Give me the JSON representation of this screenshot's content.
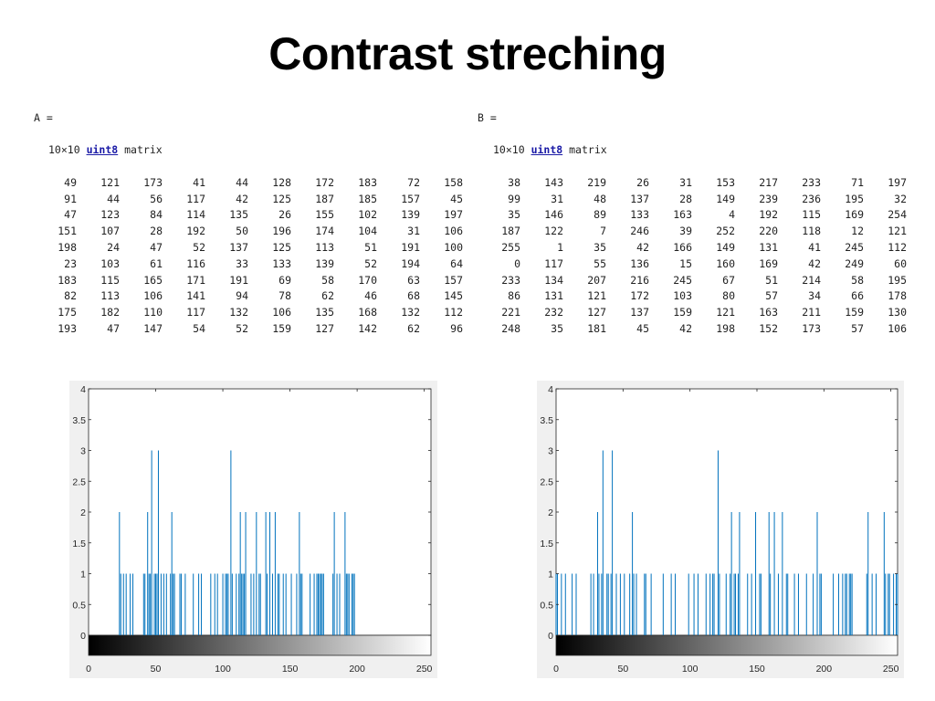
{
  "title": "Contrast streching",
  "matrixA": {
    "label": "A =",
    "size": "10×10",
    "type_link": "uint8",
    "type_suffix": "matrix",
    "rows": [
      [
        49,
        121,
        173,
        41,
        44,
        128,
        172,
        183,
        72,
        158
      ],
      [
        91,
        44,
        56,
        117,
        42,
        125,
        187,
        185,
        157,
        45
      ],
      [
        47,
        123,
        84,
        114,
        135,
        26,
        155,
        102,
        139,
        197
      ],
      [
        151,
        107,
        28,
        192,
        50,
        196,
        174,
        104,
        31,
        106
      ],
      [
        198,
        24,
        47,
        52,
        137,
        125,
        113,
        51,
        191,
        100
      ],
      [
        23,
        103,
        61,
        116,
        33,
        133,
        139,
        52,
        194,
        64
      ],
      [
        183,
        115,
        165,
        171,
        191,
        69,
        58,
        170,
        63,
        157
      ],
      [
        82,
        113,
        106,
        141,
        94,
        78,
        62,
        46,
        68,
        145
      ],
      [
        175,
        182,
        110,
        117,
        132,
        106,
        135,
        168,
        132,
        112
      ],
      [
        193,
        47,
        147,
        54,
        52,
        159,
        127,
        142,
        62,
        96
      ]
    ]
  },
  "matrixB": {
    "label": "B =",
    "size": "10×10",
    "type_link": "uint8",
    "type_suffix": "matrix",
    "rows": [
      [
        38,
        143,
        219,
        26,
        31,
        153,
        217,
        233,
        71,
        197
      ],
      [
        99,
        31,
        48,
        137,
        28,
        149,
        239,
        236,
        195,
        32
      ],
      [
        35,
        146,
        89,
        133,
        163,
        4,
        192,
        115,
        169,
        254
      ],
      [
        187,
        122,
        7,
        246,
        39,
        252,
        220,
        118,
        12,
        121
      ],
      [
        255,
        1,
        35,
        42,
        166,
        149,
        131,
        41,
        245,
        112
      ],
      [
        0,
        117,
        55,
        136,
        15,
        160,
        169,
        42,
        249,
        60
      ],
      [
        233,
        134,
        207,
        216,
        245,
        67,
        51,
        214,
        58,
        195
      ],
      [
        86,
        131,
        121,
        172,
        103,
        80,
        57,
        34,
        66,
        178
      ],
      [
        221,
        232,
        127,
        137,
        159,
        121,
        163,
        211,
        159,
        130
      ],
      [
        248,
        35,
        181,
        45,
        42,
        198,
        152,
        173,
        57,
        106
      ]
    ]
  },
  "chart_data": [
    {
      "type": "bar",
      "xlim": [
        0,
        255
      ],
      "ylim": [
        0,
        4
      ],
      "xticks": [
        "0",
        "50",
        "100",
        "150",
        "200",
        "250"
      ],
      "yticks": [
        "0",
        "0.5",
        "1",
        "1.5",
        "2",
        "2.5",
        "3",
        "3.5",
        "4"
      ],
      "bar_color": "#0072BD",
      "colorbar": "grayscale",
      "x": [
        23,
        24,
        26,
        28,
        31,
        33,
        41,
        42,
        44,
        45,
        46,
        47,
        49,
        50,
        51,
        52,
        54,
        56,
        58,
        61,
        62,
        63,
        64,
        68,
        69,
        72,
        78,
        82,
        84,
        91,
        94,
        96,
        100,
        102,
        103,
        104,
        106,
        107,
        110,
        112,
        113,
        114,
        115,
        116,
        117,
        121,
        123,
        125,
        127,
        128,
        132,
        133,
        135,
        137,
        139,
        141,
        142,
        145,
        147,
        151,
        155,
        157,
        158,
        159,
        165,
        168,
        170,
        171,
        172,
        173,
        174,
        175,
        182,
        183,
        185,
        187,
        191,
        192,
        193,
        194,
        196,
        197,
        198
      ],
      "values": [
        2,
        1,
        1,
        1,
        1,
        1,
        1,
        1,
        2,
        1,
        1,
        3,
        1,
        1,
        1,
        3,
        1,
        1,
        1,
        1,
        2,
        1,
        1,
        1,
        1,
        1,
        1,
        1,
        1,
        1,
        1,
        1,
        1,
        1,
        1,
        1,
        3,
        1,
        1,
        1,
        2,
        1,
        1,
        1,
        2,
        1,
        1,
        2,
        1,
        1,
        2,
        1,
        2,
        1,
        2,
        1,
        1,
        1,
        1,
        1,
        1,
        2,
        1,
        1,
        1,
        1,
        1,
        1,
        1,
        1,
        1,
        1,
        1,
        2,
        1,
        1,
        2,
        1,
        1,
        1,
        1,
        1,
        1
      ]
    },
    {
      "type": "bar",
      "xlim": [
        0,
        255
      ],
      "ylim": [
        0,
        4
      ],
      "xticks": [
        "0",
        "50",
        "100",
        "150",
        "200",
        "250"
      ],
      "yticks": [
        "0",
        "0.5",
        "1",
        "1.5",
        "2",
        "2.5",
        "3",
        "3.5",
        "4"
      ],
      "bar_color": "#0072BD",
      "colorbar": "grayscale",
      "x": [
        0,
        1,
        4,
        7,
        12,
        15,
        26,
        28,
        31,
        32,
        34,
        35,
        38,
        39,
        41,
        42,
        45,
        48,
        51,
        55,
        57,
        58,
        60,
        66,
        67,
        71,
        80,
        86,
        89,
        99,
        103,
        106,
        112,
        115,
        117,
        118,
        121,
        122,
        127,
        130,
        131,
        133,
        134,
        136,
        137,
        143,
        146,
        149,
        152,
        153,
        159,
        160,
        163,
        166,
        169,
        172,
        173,
        178,
        181,
        187,
        192,
        195,
        197,
        198,
        207,
        211,
        214,
        216,
        217,
        219,
        220,
        221,
        232,
        233,
        236,
        239,
        245,
        246,
        248,
        249,
        252,
        254,
        255
      ],
      "values": [
        1,
        1,
        1,
        1,
        1,
        1,
        1,
        1,
        2,
        1,
        1,
        3,
        1,
        1,
        1,
        3,
        1,
        1,
        1,
        1,
        2,
        1,
        1,
        1,
        1,
        1,
        1,
        1,
        1,
        1,
        1,
        1,
        1,
        1,
        1,
        1,
        3,
        1,
        1,
        1,
        2,
        1,
        1,
        1,
        2,
        1,
        1,
        2,
        1,
        1,
        2,
        1,
        2,
        1,
        2,
        1,
        1,
        1,
        1,
        1,
        1,
        2,
        1,
        1,
        1,
        1,
        1,
        1,
        1,
        1,
        1,
        1,
        1,
        2,
        1,
        1,
        2,
        1,
        1,
        1,
        1,
        1,
        1
      ]
    }
  ]
}
